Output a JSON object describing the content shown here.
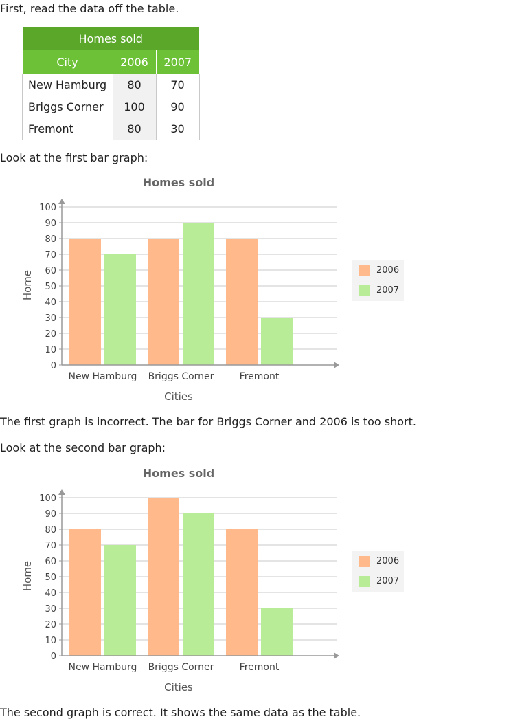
{
  "intro_text": "First, read the data off the table.",
  "table": {
    "title": "Homes sold",
    "headers": [
      "City",
      "2006",
      "2007"
    ],
    "rows": [
      [
        "New Hamburg",
        "80",
        "70"
      ],
      [
        "Briggs Corner",
        "100",
        "90"
      ],
      [
        "Fremont",
        "80",
        "30"
      ]
    ]
  },
  "first_graph_intro": "Look at the first bar graph:",
  "first_graph_conclusion": "The first graph is incorrect. The bar for Briggs Corner and 2006 is too short.",
  "second_graph_intro": "Look at the second bar graph:",
  "second_graph_conclusion": "The second graph is correct. It shows the same data as the table.",
  "colors": {
    "series_2006": "#ffb98a",
    "series_2007": "#b8ec96",
    "table_title_bg": "#5aa72a",
    "table_header_bg": "#6cc136"
  },
  "chart_data": [
    {
      "type": "bar",
      "title": "Homes sold",
      "xlabel": "Cities",
      "ylabel": "Home",
      "ylim": [
        0,
        100
      ],
      "yticks": [
        0,
        10,
        20,
        30,
        40,
        50,
        60,
        70,
        80,
        90,
        100
      ],
      "categories": [
        "New Hamburg",
        "Briggs Corner",
        "Fremont"
      ],
      "series": [
        {
          "name": "2006",
          "values": [
            80,
            80,
            80
          ]
        },
        {
          "name": "2007",
          "values": [
            70,
            90,
            30
          ]
        }
      ],
      "grid": true,
      "legend": "right"
    },
    {
      "type": "bar",
      "title": "Homes sold",
      "xlabel": "Cities",
      "ylabel": "Home",
      "ylim": [
        0,
        100
      ],
      "yticks": [
        0,
        10,
        20,
        30,
        40,
        50,
        60,
        70,
        80,
        90,
        100
      ],
      "categories": [
        "New Hamburg",
        "Briggs Corner",
        "Fremont"
      ],
      "series": [
        {
          "name": "2006",
          "values": [
            80,
            100,
            80
          ]
        },
        {
          "name": "2007",
          "values": [
            70,
            90,
            30
          ]
        }
      ],
      "grid": true,
      "legend": "right"
    }
  ]
}
